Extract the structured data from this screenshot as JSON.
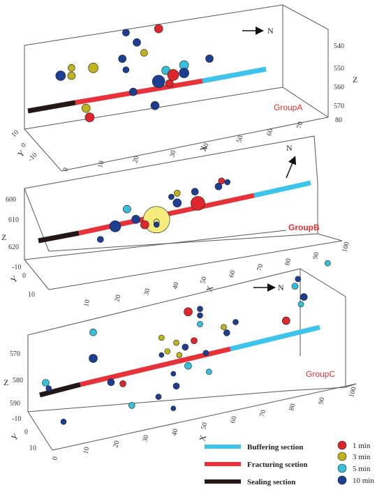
{
  "colors": {
    "1min": "#e0262d",
    "3min": "#bfb41e",
    "5min": "#35c0dc",
    "10min": "#1c3f94",
    "big_event": "#f5ec7c",
    "buffering": "#3cc4ec",
    "fracturing": "#e8323a",
    "sealing": "#241816"
  },
  "legend": {
    "sections": [
      {
        "key": "buffering",
        "label": "Buffering section"
      },
      {
        "key": "fracturing",
        "label": "Fracturing scetion"
      },
      {
        "key": "sealing",
        "label": "Sealing section"
      }
    ],
    "durations": [
      {
        "key": "1min",
        "label": "1 min"
      },
      {
        "key": "3min",
        "label": "3 min"
      },
      {
        "key": "5min",
        "label": "5 min"
      },
      {
        "key": "10min",
        "label": "10 min"
      }
    ]
  },
  "chart_data": [
    {
      "type": "scatter",
      "title": "GroupA",
      "north_label": "N",
      "xlabel": "X",
      "ylabel": "Y",
      "zlabel": "Z",
      "x_ticks": [
        "0",
        "10",
        "20",
        "30",
        "40",
        "50",
        "60",
        "70"
      ],
      "y_ticks": [
        "10",
        "0",
        "-10"
      ],
      "z_ticks": [
        "540",
        "550",
        "560",
        "570",
        "80"
      ],
      "sections": [
        {
          "key": "sealing",
          "x": [
            0,
            10
          ]
        },
        {
          "key": "fracturing",
          "x": [
            10,
            45
          ]
        },
        {
          "key": "buffering",
          "x": [
            45,
            60
          ]
        }
      ],
      "points": [
        {
          "t": "10min",
          "x": 27,
          "z": 534,
          "s": 10
        },
        {
          "t": "1min",
          "x": 36,
          "z": 535,
          "s": 12
        },
        {
          "t": "10min",
          "x": 30,
          "z": 540,
          "s": 11
        },
        {
          "t": "3min",
          "x": 32,
          "z": 546,
          "s": 10
        },
        {
          "t": "3min",
          "x": 12,
          "z": 547,
          "s": 10
        },
        {
          "t": "10min",
          "x": 9,
          "z": 550,
          "s": 14
        },
        {
          "t": "3min",
          "x": 12,
          "z": 551,
          "s": 11
        },
        {
          "t": "3min",
          "x": 18,
          "z": 549,
          "s": 14
        },
        {
          "t": "10min",
          "x": 26,
          "z": 547,
          "s": 11
        },
        {
          "t": "10min",
          "x": 27,
          "z": 553,
          "s": 9
        },
        {
          "t": "5min",
          "x": 38,
          "z": 557,
          "s": 12
        },
        {
          "t": "5min",
          "x": 43,
          "z": 556,
          "s": 13
        },
        {
          "t": "1min",
          "x": 40,
          "z": 560,
          "s": 16
        },
        {
          "t": "10min",
          "x": 36,
          "z": 562,
          "s": 18
        },
        {
          "t": "10min",
          "x": 43,
          "z": 560,
          "s": 14
        },
        {
          "t": "10min",
          "x": 50,
          "z": 555,
          "s": 11
        },
        {
          "t": "1min",
          "x": 39,
          "z": 564,
          "s": 11
        },
        {
          "t": "10min",
          "x": 29,
          "z": 565,
          "s": 11
        },
        {
          "t": "3min",
          "x": 16,
          "z": 569,
          "s": 12
        },
        {
          "t": "10min",
          "x": 35,
          "z": 574,
          "s": 12
        },
        {
          "t": "1min",
          "x": 17,
          "z": 574,
          "s": 13
        }
      ]
    },
    {
      "type": "scatter",
      "title": "GroupB",
      "north_label": "N",
      "xlabel": "X",
      "ylabel": "Y",
      "zlabel": "Z",
      "x_ticks": [
        "10",
        "20",
        "30",
        "40",
        "50",
        "60",
        "70",
        "80",
        "90",
        "100"
      ],
      "y_ticks": [
        "-10",
        "0",
        "10"
      ],
      "z_ticks": [
        "600",
        "610",
        "620"
      ],
      "sections": [
        {
          "key": "sealing",
          "x": [
            0,
            10
          ]
        },
        {
          "key": "fracturing",
          "x": [
            10,
            70
          ]
        },
        {
          "key": "buffering",
          "x": [
            70,
            95
          ]
        }
      ],
      "points": [
        {
          "t": "1min",
          "x": 62,
          "z": 607,
          "s": 9
        },
        {
          "t": "10min",
          "x": 64,
          "z": 608,
          "s": 8
        },
        {
          "t": "10min",
          "x": 61,
          "z": 609,
          "s": 10
        },
        {
          "t": "3min",
          "x": 47,
          "z": 608,
          "s": 9
        },
        {
          "t": "10min",
          "x": 45,
          "z": 609,
          "s": 8
        },
        {
          "t": "10min",
          "x": 53,
          "z": 609,
          "s": 10
        },
        {
          "t": "5min",
          "x": 30,
          "z": 610,
          "s": 11
        },
        {
          "t": "10min",
          "x": 47,
          "z": 612,
          "s": 12
        },
        {
          "t": "1min",
          "x": 54,
          "z": 614,
          "s": 20
        },
        {
          "t": "10min",
          "x": 33,
          "z": 615,
          "s": 12
        },
        {
          "t": "10min",
          "x": 26,
          "z": 616,
          "s": 16
        },
        {
          "t": "big",
          "x": 40,
          "z": 617,
          "s": 38
        },
        {
          "t": "1min",
          "x": 36,
          "z": 618,
          "s": 12
        },
        {
          "t": "10min",
          "x": 40,
          "z": 619,
          "s": 8
        },
        {
          "t": "10min",
          "x": 21,
          "z": 620,
          "s": 9
        }
      ]
    },
    {
      "type": "scatter",
      "title": "GroupC",
      "north_label": "N",
      "xlabel": "X",
      "ylabel": "Y",
      "zlabel": "Z",
      "x_ticks": [
        "0",
        "10",
        "20",
        "30",
        "40",
        "50",
        "60",
        "70",
        "80",
        "90",
        "100"
      ],
      "y_ticks": [
        "-10",
        "0",
        "10"
      ],
      "z_ticks": [
        "570",
        "580",
        "590"
      ],
      "sections": [
        {
          "key": "sealing",
          "x": [
            0,
            10
          ]
        },
        {
          "key": "fracturing",
          "x": [
            10,
            60
          ]
        },
        {
          "key": "buffering",
          "x": [
            60,
            95
          ]
        }
      ],
      "points": [
        {
          "t": "5min",
          "x": 97,
          "z": 556,
          "s": 8
        },
        {
          "t": "10min",
          "x": 87,
          "z": 560,
          "s": 8
        },
        {
          "t": "5min",
          "x": 86,
          "z": 563,
          "s": 9
        },
        {
          "t": "10min",
          "x": 89,
          "z": 569,
          "s": 10
        },
        {
          "t": "5min",
          "x": 88,
          "z": 572,
          "s": 8
        },
        {
          "t": "1min",
          "x": 50,
          "z": 563,
          "s": 12
        },
        {
          "t": "10min",
          "x": 54,
          "z": 563,
          "s": 8
        },
        {
          "t": "10min",
          "x": 54,
          "z": 566,
          "s": 8
        },
        {
          "t": "5min",
          "x": 54,
          "z": 570,
          "s": 8
        },
        {
          "t": "5min",
          "x": 18,
          "z": 562,
          "s": 10
        },
        {
          "t": "3min",
          "x": 41,
          "z": 572,
          "s": 8
        },
        {
          "t": "10min",
          "x": 18,
          "z": 574,
          "s": 12
        },
        {
          "t": "3min",
          "x": 46,
          "z": 576,
          "s": 8
        },
        {
          "t": "1min",
          "x": 52,
          "z": 577,
          "s": 9
        },
        {
          "t": "3min",
          "x": 62,
          "z": 574,
          "s": 8
        },
        {
          "t": "10min",
          "x": 66,
          "z": 573,
          "s": 8
        },
        {
          "t": "3min",
          "x": 43,
          "z": 579,
          "s": 8
        },
        {
          "t": "10min",
          "x": 41,
          "z": 580,
          "s": 7
        },
        {
          "t": "10min",
          "x": 49,
          "z": 579,
          "s": 9
        },
        {
          "t": "10min",
          "x": 63,
          "z": 577,
          "s": 9
        },
        {
          "t": "1min",
          "x": 83,
          "z": 578,
          "s": 11
        },
        {
          "t": "3min",
          "x": 47,
          "z": 582,
          "s": 8
        },
        {
          "t": "10min",
          "x": 56,
          "z": 584,
          "s": 8
        },
        {
          "t": "5min",
          "x": 50,
          "z": 588,
          "s": 10
        },
        {
          "t": "10min",
          "x": 45,
          "z": 590,
          "s": 7
        },
        {
          "t": "5min",
          "x": 57,
          "z": 593,
          "s": 8
        },
        {
          "t": "10min",
          "x": 24,
          "z": 587,
          "s": 10
        },
        {
          "t": "1min",
          "x": 28,
          "z": 589,
          "s": 9
        },
        {
          "t": "5min",
          "x": 2,
          "z": 580,
          "s": 10
        },
        {
          "t": "10min",
          "x": 3,
          "z": 583,
          "s": 8
        },
        {
          "t": "10min",
          "x": 46,
          "z": 596,
          "s": 9
        },
        {
          "t": "10min",
          "x": 40,
          "z": 599,
          "s": 8
        },
        {
          "t": "5min",
          "x": 31,
          "z": 600,
          "s": 9
        },
        {
          "t": "10min",
          "x": 8,
          "z": 600,
          "s": 8
        },
        {
          "t": "10min",
          "x": 45,
          "z": 606,
          "s": 7
        }
      ]
    }
  ]
}
